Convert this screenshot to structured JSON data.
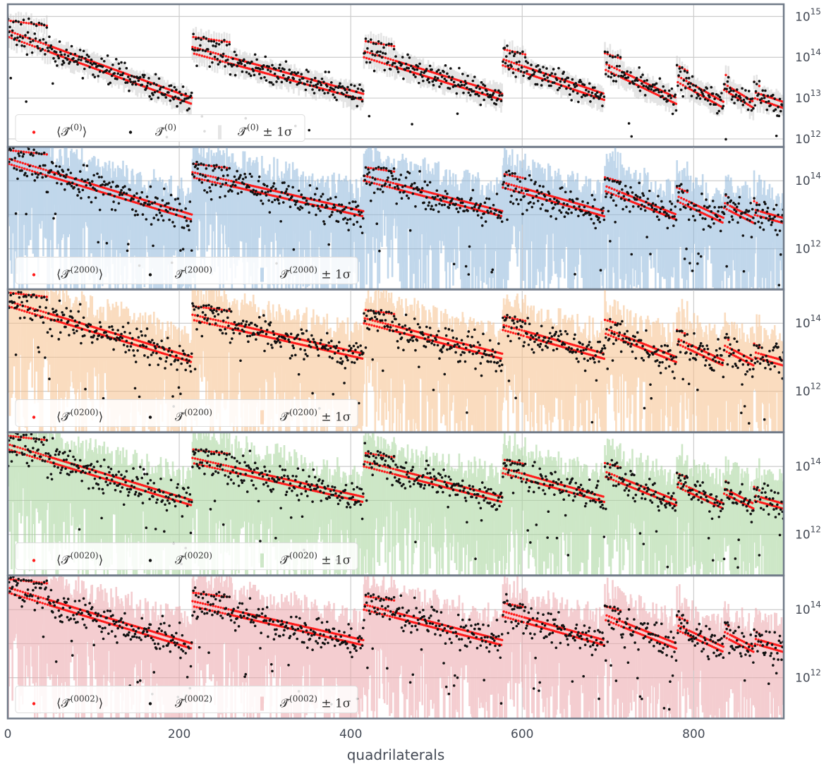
{
  "chart_data": {
    "type": "scatter",
    "xlabel": "quadrilaterals",
    "xlim": [
      0,
      905
    ],
    "x_ticks": [
      0,
      200,
      400,
      600,
      800
    ],
    "x_tick_labels": [
      "0",
      "200",
      "400",
      "600",
      "800"
    ],
    "yscale": "log",
    "segments": [
      {
        "start": 0,
        "end": 215,
        "base_top": 15,
        "base_end": 13
      },
      {
        "start": 215,
        "end": 415,
        "base_top": 14.6,
        "base_end": 13.1
      },
      {
        "start": 415,
        "end": 577,
        "base_top": 14.5,
        "base_end": 13.1
      },
      {
        "start": 577,
        "end": 696,
        "base_top": 14.3,
        "base_end": 13.1
      },
      {
        "start": 696,
        "end": 780,
        "base_top": 14.2,
        "base_end": 13.0
      },
      {
        "start": 780,
        "end": 835,
        "base_top": 13.9,
        "base_end": 12.9
      },
      {
        "start": 835,
        "end": 870,
        "base_top": 13.7,
        "base_end": 12.9
      },
      {
        "start": 870,
        "end": 905,
        "base_top": 13.5,
        "base_end": 12.9
      }
    ],
    "panels": [
      {
        "name": "T(0)",
        "ylim_log10": [
          11.8,
          15.3
        ],
        "y_ticks_log10": [
          12,
          13,
          14,
          15
        ],
        "y_tick_labels": [
          [
            "10",
            "12"
          ],
          [
            "10",
            "13"
          ],
          [
            "10",
            "14"
          ],
          [
            "10",
            "15"
          ]
        ],
        "band_color": "#cfcfcf",
        "noise": 0.25,
        "legend": {
          "mean_label": "⟨𝒯̂",
          "mean_sup": "(0)",
          "sample_label": "𝒯̂",
          "sample_sup": "(0)",
          "band_label": "𝒯̂",
          "band_sup": "(0)",
          "band_suffix": " ± 1σ"
        }
      },
      {
        "name": "T(2000)",
        "ylim_log10": [
          10.8,
          15.0
        ],
        "y_ticks_log10": [
          12,
          14
        ],
        "y_tick_labels": [
          [
            "10",
            "12"
          ],
          [
            "10",
            "14"
          ]
        ],
        "band_color": "#8fb8dc",
        "noise": 0.45,
        "legend": {
          "mean_label": "⟨𝒯̂",
          "mean_sup": "(2000)",
          "sample_label": "𝒯̂",
          "sample_sup": "(2000)",
          "band_label": "𝒯̂",
          "band_sup": "(2000)",
          "band_suffix": " ± 1σ"
        }
      },
      {
        "name": "T(0200)",
        "ylim_log10": [
          10.8,
          15.0
        ],
        "y_ticks_log10": [
          12,
          14
        ],
        "y_tick_labels": [
          [
            "10",
            "12"
          ],
          [
            "10",
            "14"
          ]
        ],
        "band_color": "#f7c08c",
        "noise": 0.45,
        "legend": {
          "mean_label": "⟨𝒯̂",
          "mean_sup": "(0200)",
          "sample_label": "𝒯̂",
          "sample_sup": "(0200)",
          "band_label": "𝒯̂",
          "band_sup": "(0200)",
          "band_suffix": " ± 1σ"
        }
      },
      {
        "name": "T(0020)",
        "ylim_log10": [
          10.8,
          15.0
        ],
        "y_ticks_log10": [
          12,
          14
        ],
        "y_tick_labels": [
          [
            "10",
            "12"
          ],
          [
            "10",
            "14"
          ]
        ],
        "band_color": "#a6d49a",
        "noise": 0.45,
        "legend": {
          "mean_label": "⟨𝒯̂",
          "mean_sup": "(0020)",
          "sample_label": "𝒯̂",
          "sample_sup": "(0020)",
          "band_label": "𝒯̂",
          "band_sup": "(0020)",
          "band_suffix": " ± 1σ"
        }
      },
      {
        "name": "T(0002)",
        "ylim_log10": [
          10.8,
          15.0
        ],
        "y_ticks_log10": [
          12,
          14
        ],
        "y_tick_labels": [
          [
            "10",
            "12"
          ],
          [
            "10",
            "14"
          ]
        ],
        "band_color": "#eca6aa",
        "noise": 0.45,
        "legend": {
          "mean_label": "⟨𝒯̂",
          "mean_sup": "(0002)",
          "sample_label": "𝒯̂",
          "sample_sup": "(0002)",
          "band_label": "𝒯̂",
          "band_sup": "(0002)",
          "band_suffix": " ± 1σ"
        }
      }
    ],
    "colors": {
      "mean": "#ff1a1a",
      "sample": "#111111",
      "frame": "#707a88",
      "grid": "#cccccc"
    }
  }
}
